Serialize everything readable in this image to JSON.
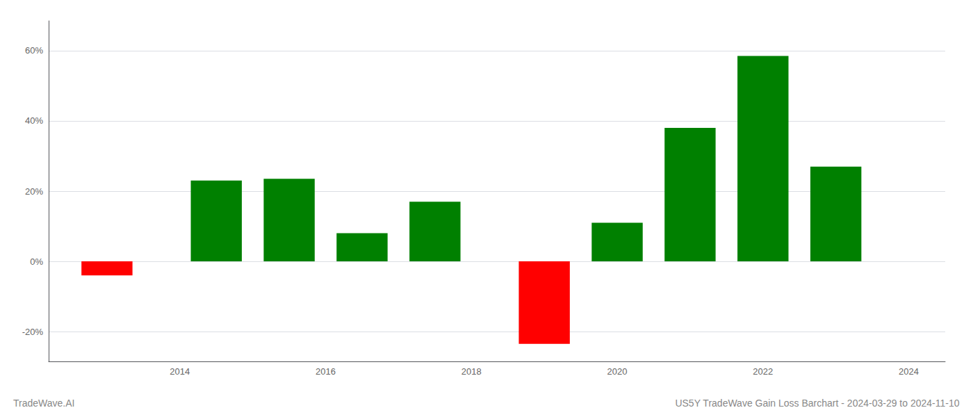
{
  "chart_data": {
    "type": "bar",
    "title": "US5Y TradeWave Gain Loss Barchart - 2024-03-29 to 2024-11-10",
    "annotations": [
      "TradeWave.AI"
    ],
    "x": [
      2013,
      2014.5,
      2015.5,
      2016.5,
      2017.5,
      2019,
      2020,
      2021,
      2022,
      2023
    ],
    "values": [
      -0.04,
      0.23,
      0.235,
      0.08,
      0.17,
      -0.235,
      0.11,
      0.38,
      0.585,
      0.27
    ],
    "colors": [
      "#ff0000",
      "#008000",
      "#008000",
      "#008000",
      "#008000",
      "#ff0000",
      "#008000",
      "#008000",
      "#008000",
      "#008000"
    ],
    "xlim": [
      2012.2,
      2024.5
    ],
    "xticks": [
      2014,
      2016,
      2018,
      2020,
      2022,
      2024
    ],
    "ylim": [
      -0.285,
      0.685
    ],
    "yticks": [
      {
        "value": -0.2,
        "label": "-20%"
      },
      {
        "value": 0.0,
        "label": "0%"
      },
      {
        "value": 0.2,
        "label": "20%"
      },
      {
        "value": 0.4,
        "label": "40%"
      },
      {
        "value": 0.6,
        "label": "60%"
      }
    ],
    "grid": true
  }
}
